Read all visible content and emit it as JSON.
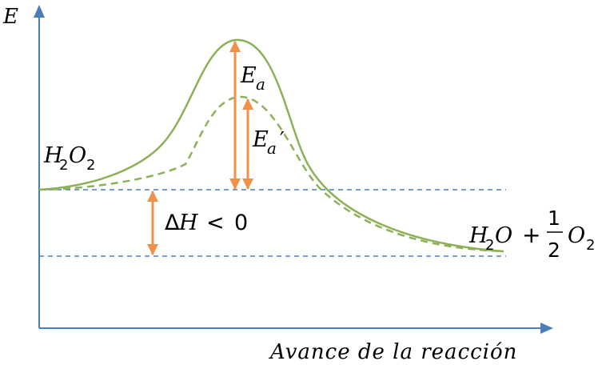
{
  "labels": {
    "y_axis": "E",
    "x_axis": "Avance de la reacción",
    "reactant": {
      "main": "H",
      "sub1": "2",
      "mid": "O",
      "sub2": "2"
    },
    "products": {
      "h": "H",
      "h_sub": "2",
      "o1": "O",
      "plus": "+",
      "frac_num": "1",
      "frac_den": "2",
      "o2": "O",
      "o2_sub": "2"
    },
    "activation_energy": {
      "main": "E",
      "sub": "a"
    },
    "activation_energy_catalyzed": {
      "main": "E",
      "sub": "a",
      "prime": "′"
    },
    "enthalpy": {
      "delta": "Δ",
      "h": "H",
      "rel": "<",
      "zero": "0"
    }
  },
  "colors": {
    "axis": "#4a7ebb",
    "curve": "#8db159",
    "arrow": "#f0914a",
    "guide": "#4a7ebb",
    "text": "#000000"
  }
}
